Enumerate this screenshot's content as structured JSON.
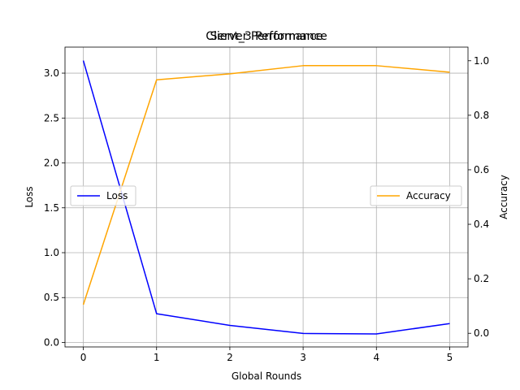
{
  "chart_data": {
    "type": "line",
    "titles": [
      "Client_3 Performance",
      "Server Performance"
    ],
    "xlabel": "Global Rounds",
    "ylabel_left": "Loss",
    "ylabel_right": "Accuracy",
    "x": [
      0,
      1,
      2,
      3,
      4,
      5
    ],
    "xlim": [
      -0.25,
      5.25
    ],
    "ylim_left": [
      -0.05,
      3.29
    ],
    "ylim_right": [
      -0.05,
      1.05
    ],
    "xticks": [
      0,
      1,
      2,
      3,
      4,
      5
    ],
    "yticks_left": [
      0.0,
      0.5,
      1.0,
      1.5,
      2.0,
      2.5,
      3.0
    ],
    "yticks_right": [
      0.0,
      0.2,
      0.4,
      0.6,
      0.8,
      1.0
    ],
    "grid": true,
    "series": [
      {
        "name": "Loss",
        "axis": "left",
        "color": "#0000ff",
        "values": [
          3.14,
          0.32,
          0.19,
          0.1,
          0.095,
          0.21
        ]
      },
      {
        "name": "Accuracy",
        "axis": "right",
        "color": "#ffa500",
        "values": [
          0.105,
          0.93,
          0.952,
          0.982,
          0.982,
          0.958
        ]
      }
    ],
    "legend": [
      {
        "label": "Loss",
        "placement": "center-left",
        "color": "#0000ff"
      },
      {
        "label": "Accuracy",
        "placement": "center-right",
        "color": "#ffa500"
      }
    ]
  }
}
